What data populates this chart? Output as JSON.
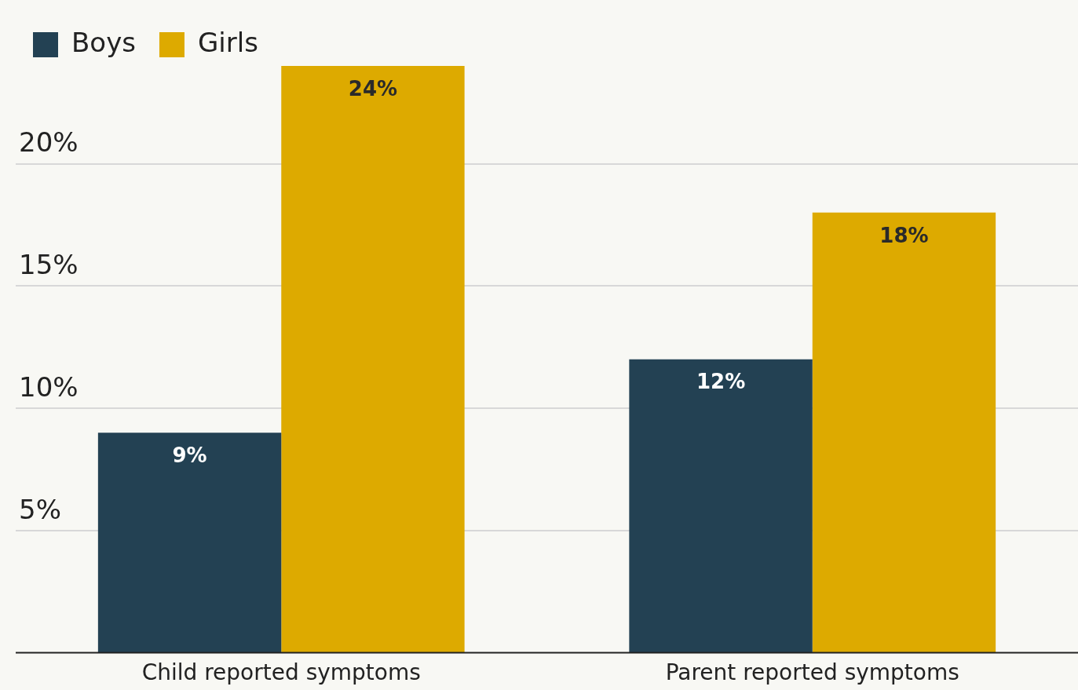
{
  "chart_data": {
    "type": "bar",
    "categories": [
      "Child reported symptoms",
      "Parent reported symptoms"
    ],
    "series": [
      {
        "name": "Boys",
        "color": "#234153",
        "values": [
          9,
          12
        ]
      },
      {
        "name": "Girls",
        "color": "#ddaa00",
        "values": [
          24,
          18
        ]
      }
    ],
    "value_labels": [
      [
        "9%",
        "12%"
      ],
      [
        "24%",
        "18%"
      ]
    ],
    "ylim": [
      0,
      24
    ],
    "yticks": [
      {
        "value": 5,
        "label": "5%"
      },
      {
        "value": 10,
        "label": "10%"
      },
      {
        "value": 15,
        "label": "15%"
      },
      {
        "value": 20,
        "label": "20%"
      }
    ],
    "grid": "y",
    "legend": "top left"
  }
}
